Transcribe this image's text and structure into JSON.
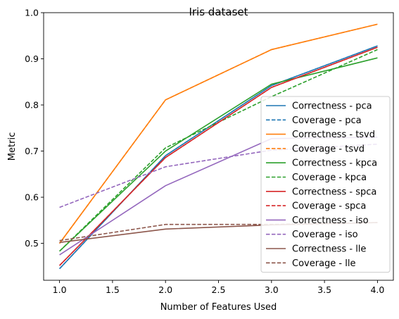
{
  "chart_data": {
    "type": "line",
    "title": "Iris dataset",
    "xlabel": "Number of Features Used",
    "ylabel": "Metric",
    "xlim": [
      0.85,
      4.15
    ],
    "ylim": [
      0.42,
      1.0
    ],
    "xticks": [
      1.0,
      1.5,
      2.0,
      2.5,
      3.0,
      3.5,
      4.0
    ],
    "xtick_labels": [
      "1.0",
      "1.5",
      "2.0",
      "2.5",
      "3.0",
      "3.5",
      "4.0"
    ],
    "yticks": [
      0.5,
      0.6,
      0.7,
      0.8,
      0.9,
      1.0
    ],
    "ytick_labels": [
      "0.5",
      "0.6",
      "0.7",
      "0.8",
      "0.9",
      "1.0"
    ],
    "grid": false,
    "legend_position": "lower-right",
    "x": [
      1,
      2,
      3,
      4
    ],
    "series": [
      {
        "name": "Correctness - pca",
        "values": [
          0.445,
          0.69,
          0.842,
          0.928
        ],
        "color": "#1f77b4",
        "dash": "solid"
      },
      {
        "name": "Coverage - pca",
        "values": [
          0.445,
          0.69,
          0.842,
          0.928
        ],
        "color": "#1f77b4",
        "dash": "dashed"
      },
      {
        "name": "Correctness - tsvd",
        "values": [
          0.5,
          0.811,
          0.92,
          0.975
        ],
        "color": "#ff7f0e",
        "dash": "solid"
      },
      {
        "name": "Coverage - tsvd",
        "values": [
          0.5,
          0.811,
          0.92,
          0.975
        ],
        "color": "#ff7f0e",
        "dash": "dashed"
      },
      {
        "name": "Correctness - kpca",
        "values": [
          0.483,
          0.7,
          0.845,
          0.902
        ],
        "color": "#2ca02c",
        "dash": "solid"
      },
      {
        "name": "Coverage - kpca",
        "values": [
          0.483,
          0.707,
          0.818,
          0.92
        ],
        "color": "#2ca02c",
        "dash": "dashed"
      },
      {
        "name": "Correctness - spca",
        "values": [
          0.452,
          0.686,
          0.838,
          0.925
        ],
        "color": "#d62728",
        "dash": "solid"
      },
      {
        "name": "Coverage - spca",
        "values": [
          0.452,
          0.686,
          0.838,
          0.925
        ],
        "color": "#d62728",
        "dash": "dashed"
      },
      {
        "name": "Correctness - iso",
        "values": [
          0.475,
          0.625,
          0.727,
          0.73
        ],
        "color": "#9467bd",
        "dash": "solid"
      },
      {
        "name": "Coverage - iso",
        "values": [
          0.578,
          0.666,
          0.702,
          0.715
        ],
        "color": "#9467bd",
        "dash": "dashed"
      },
      {
        "name": "Correctness - lle",
        "values": [
          0.502,
          0.531,
          0.54,
          0.545
        ],
        "color": "#8c564b",
        "dash": "solid"
      },
      {
        "name": "Coverage - lle",
        "values": [
          0.506,
          0.541,
          0.541,
          0.545
        ],
        "color": "#8c564b",
        "dash": "dashed"
      }
    ]
  }
}
